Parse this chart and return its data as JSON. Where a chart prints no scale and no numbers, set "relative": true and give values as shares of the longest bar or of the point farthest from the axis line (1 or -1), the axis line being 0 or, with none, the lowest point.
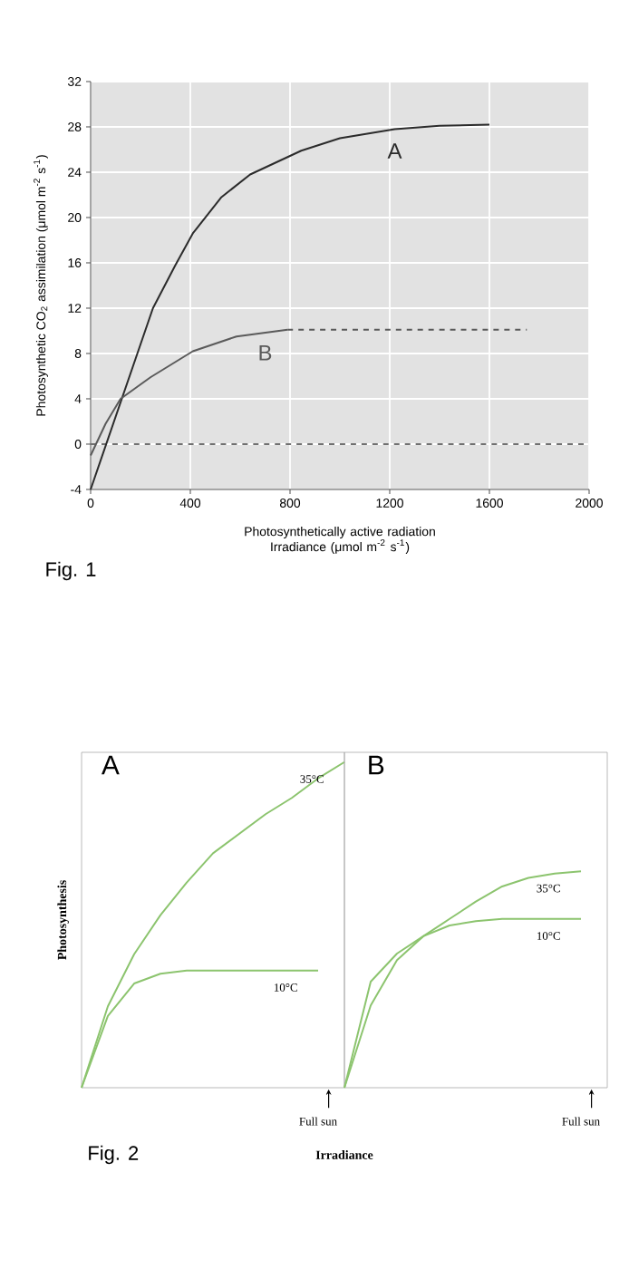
{
  "chart_data": [
    {
      "type": "line",
      "ylabel": "Photosynthetic CO$_{2}$ assimilation (μmol m$^{-2}$ s$^{-1}$)",
      "xlabel": "Photosynthetically active radiation Irradiance (μmol m$^{-2}$ s$^{-1}$)",
      "annotations": [
        "Fig. 1"
      ],
      "xlim": [
        0,
        2000
      ],
      "xticks": [
        0,
        400,
        800,
        1200,
        1600,
        2000
      ],
      "ylim": [
        -4,
        32
      ],
      "yticks": [
        -4,
        0,
        4,
        8,
        12,
        16,
        20,
        24,
        28,
        32
      ],
      "grid": true,
      "ref_lines": [
        {
          "axis": "y",
          "value": 0,
          "color": "#707070",
          "line_style": "dashed"
        }
      ],
      "series": [
        {
          "name": "A",
          "color": "#2b2b2b",
          "x": [
            0,
            125,
            250,
            340,
            410,
            525,
            640,
            845,
            1000,
            1220,
            1400,
            1600
          ],
          "values": [
            -4,
            4,
            12,
            15.8,
            18.6,
            21.8,
            23.8,
            25.9,
            27,
            27.8,
            28.1,
            28.2
          ]
        },
        {
          "name": "B",
          "color": "#5a5a5a",
          "x": [
            0,
            60,
            120,
            240,
            410,
            585,
            790
          ],
          "values": [
            -1,
            1.8,
            4,
            5.9,
            8.2,
            9.5,
            10.1
          ]
        },
        {
          "color": "#5a5a5a",
          "line_style": "dashed",
          "x": [
            790,
            1750
          ],
          "values": [
            10.1,
            10.1
          ]
        }
      ]
    },
    {
      "type": "line",
      "title": "A",
      "ylabel": "Photosynthesis",
      "xlabel": "Irradiance",
      "annotations": [
        "Fig. 2",
        "Full sun"
      ],
      "relative": true,
      "categories": [
        null,
        null,
        null,
        null,
        null,
        null,
        null,
        null,
        null,
        null,
        null
      ],
      "series": [
        {
          "name": "35°C",
          "color": "#8cc46e",
          "values": [
            0,
            0.25,
            0.41,
            0.53,
            0.63,
            0.72,
            0.78,
            0.84,
            0.89,
            0.95,
            1
          ]
        },
        {
          "name": "10°C",
          "color": "#8cc46e",
          "values": [
            0,
            0.22,
            0.32,
            0.35,
            0.36,
            0.36,
            0.36,
            0.36,
            0.36,
            0.36,
            null
          ]
        }
      ]
    },
    {
      "type": "line",
      "title": "B",
      "annotations": [
        "Full sun"
      ],
      "relative": true,
      "categories": [
        null,
        null,
        null,
        null,
        null,
        null,
        null,
        null,
        null,
        null,
        null
      ],
      "series": [
        {
          "name": "35°C",
          "color": "#8cc46e",
          "values": [
            0,
            0.38,
            0.59,
            0.7,
            0.78,
            0.86,
            0.93,
            0.97,
            0.99,
            1,
            null
          ]
        },
        {
          "name": "10°C",
          "color": "#8cc46e",
          "values": [
            0,
            0.49,
            0.62,
            0.7,
            0.75,
            0.77,
            0.78,
            0.78,
            0.78,
            0.78,
            null
          ]
        }
      ]
    }
  ]
}
